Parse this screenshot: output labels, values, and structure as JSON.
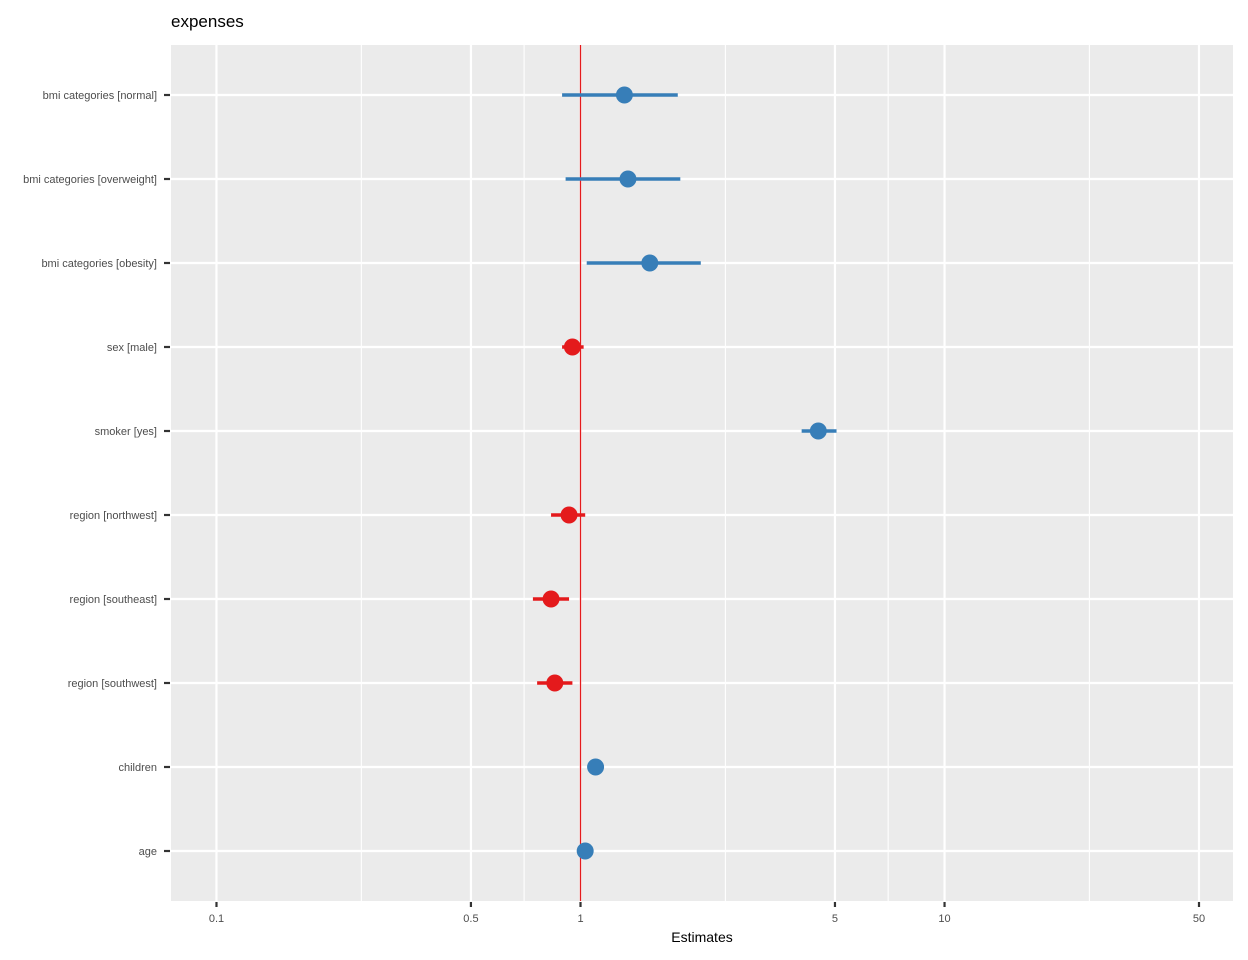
{
  "chart_data": {
    "type": "scatter",
    "subtype": "forest-plot",
    "title": "expenses",
    "xlabel": "Estimates",
    "ylabel": "",
    "x_scale": "log10",
    "xlim": [
      0.075,
      62
    ],
    "x_ticks": [
      0.1,
      0.5,
      1,
      5,
      10,
      50
    ],
    "x_tick_labels": [
      "0.1",
      "0.5",
      "1",
      "5",
      "10",
      "50"
    ],
    "x_minor_gridlines": [
      0.25,
      0.7,
      2.5,
      7,
      25
    ],
    "reference_line": 1,
    "grid": true,
    "colors": {
      "positive": "#377eb8",
      "negative": "#e41a1c",
      "reference_line": "#e41a1c",
      "panel_background": "#ebebeb",
      "gridline": "#ffffff"
    },
    "terms": [
      {
        "label": "bmi categories [normal]",
        "estimate": 1.32,
        "ci_low": 0.89,
        "ci_high": 1.85
      },
      {
        "label": "bmi categories [overweight]",
        "estimate": 1.35,
        "ci_low": 0.91,
        "ci_high": 1.88
      },
      {
        "label": "bmi categories [obesity]",
        "estimate": 1.55,
        "ci_low": 1.04,
        "ci_high": 2.14
      },
      {
        "label": "sex [male]",
        "estimate": 0.95,
        "ci_low": 0.89,
        "ci_high": 1.02
      },
      {
        "label": "smoker [yes]",
        "estimate": 4.5,
        "ci_low": 4.05,
        "ci_high": 5.05
      },
      {
        "label": "region [northwest]",
        "estimate": 0.93,
        "ci_low": 0.83,
        "ci_high": 1.03
      },
      {
        "label": "region [southeast]",
        "estimate": 0.83,
        "ci_low": 0.74,
        "ci_high": 0.93
      },
      {
        "label": "region [southwest]",
        "estimate": 0.85,
        "ci_low": 0.76,
        "ci_high": 0.95
      },
      {
        "label": "children",
        "estimate": 1.1,
        "ci_low": 1.07,
        "ci_high": 1.13
      },
      {
        "label": "age",
        "estimate": 1.03,
        "ci_low": 1.025,
        "ci_high": 1.035
      }
    ]
  }
}
